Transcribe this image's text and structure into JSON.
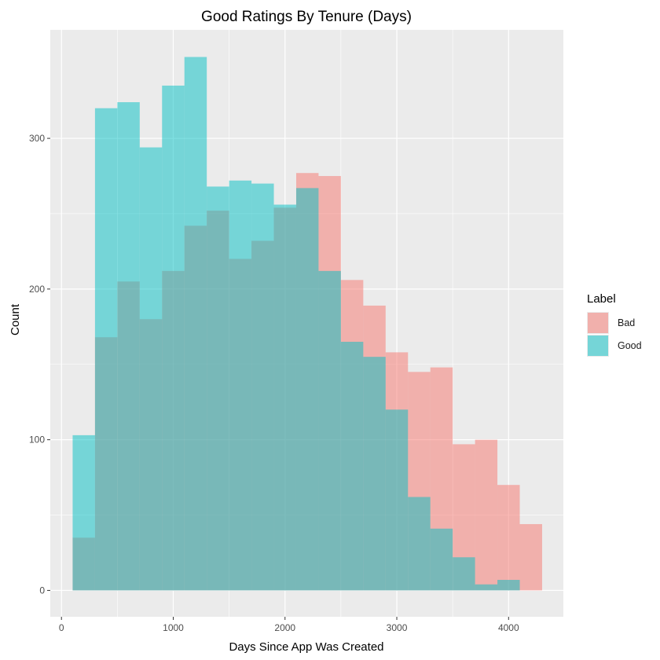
{
  "chart_data": {
    "type": "histogram",
    "title": "Good Ratings By Tenure (Days)",
    "xlabel": "Days Since App Was Created",
    "ylabel": "Count",
    "xlim": [
      -100,
      4490
    ],
    "ylim": [
      -17.5,
      372
    ],
    "x_ticks": [
      0,
      1000,
      2000,
      3000,
      4000
    ],
    "x_tick_labels": [
      "0",
      "1000",
      "2000",
      "3000",
      "4000"
    ],
    "y_ticks": [
      0,
      100,
      200,
      300
    ],
    "y_tick_labels": [
      "0",
      "100",
      "200",
      "300"
    ],
    "grid": true,
    "legend": {
      "title": "Label",
      "position": "right"
    },
    "bins": {
      "start": 100,
      "width": 200,
      "count": 21
    },
    "series": [
      {
        "name": "Bad",
        "color": "#F8766D",
        "values": [
          35,
          168,
          205,
          180,
          212,
          242,
          252,
          220,
          232,
          254,
          277,
          275,
          206,
          189,
          158,
          145,
          148,
          97,
          100,
          70,
          44
        ]
      },
      {
        "name": "Good",
        "color": "#00BFC4",
        "values": [
          103,
          320,
          324,
          294,
          335,
          354,
          268,
          272,
          270,
          256,
          267,
          212,
          165,
          155,
          120,
          62,
          41,
          22,
          4,
          7,
          0
        ]
      }
    ]
  }
}
